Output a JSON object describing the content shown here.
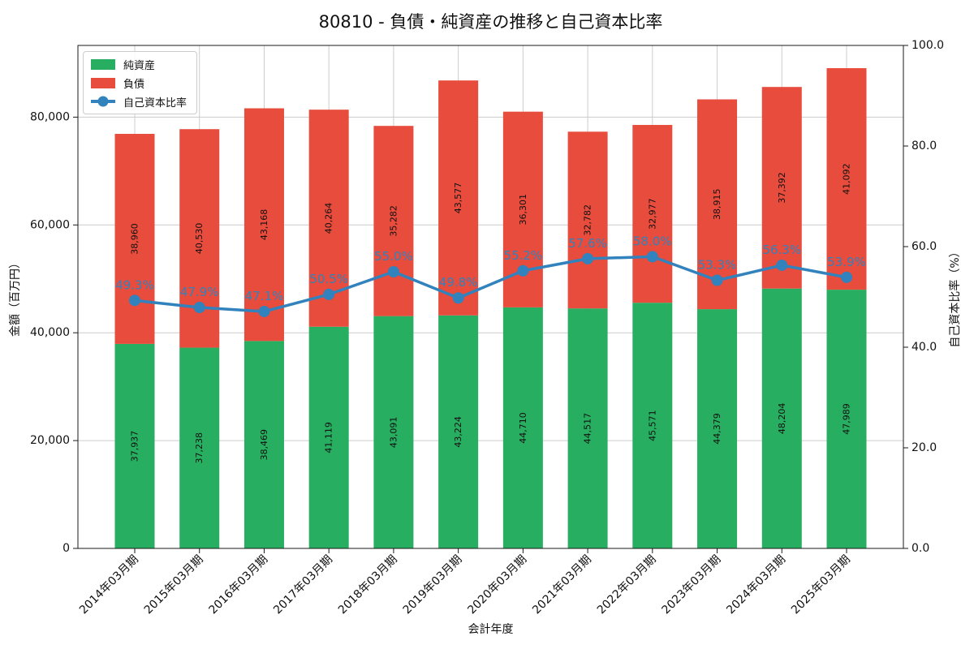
{
  "chart_data": {
    "type": "bar",
    "variant": "stacked-bars-with-line-overlay",
    "title": "80810 - 負債・純資産の推移と自己資本比率",
    "xlabel": "会計年度",
    "ylabel_left": "金額（百万円）",
    "ylabel_right": "自己資本比率（%）",
    "categories": [
      "2014年03月期",
      "2015年03月期",
      "2016年03月期",
      "2017年03月期",
      "2018年03月期",
      "2019年03月期",
      "2020年03月期",
      "2021年03月期",
      "2022年03月期",
      "2023年03月期",
      "2024年03月期",
      "2025年03月期"
    ],
    "series": [
      {
        "name": "純資産",
        "slug": "net-assets",
        "type": "bar",
        "stack_order": 0,
        "color": "#27ae60",
        "values": [
          37937,
          37238,
          38469,
          41119,
          43091,
          43224,
          44710,
          44517,
          45571,
          44379,
          48204,
          47989
        ]
      },
      {
        "name": "負債",
        "slug": "liabilities",
        "type": "bar",
        "stack_order": 1,
        "color": "#e74c3c",
        "values": [
          38960,
          40530,
          43168,
          40264,
          35282,
          43577,
          36301,
          32782,
          32977,
          38915,
          37392,
          41092
        ]
      },
      {
        "name": "自己資本比率",
        "slug": "equity-ratio",
        "type": "line",
        "axis": "right",
        "color": "#3182bd",
        "values": [
          49.3,
          47.9,
          47.1,
          50.5,
          55.0,
          49.8,
          55.2,
          57.6,
          58.0,
          53.3,
          56.3,
          53.9
        ],
        "label_suffix": "%"
      }
    ],
    "axes": {
      "left": {
        "ticks": [
          0,
          20000,
          40000,
          60000,
          80000
        ],
        "min": 0,
        "max": 93300,
        "tick_labels": [
          "0",
          "20,000",
          "40,000",
          "60,000",
          "80,000"
        ]
      },
      "right": {
        "ticks": [
          0,
          20,
          40,
          60,
          80,
          100
        ],
        "min": 0,
        "max": 100,
        "tick_labels": [
          "0.0",
          "20.0",
          "40.0",
          "60.0",
          "80.0",
          "100.0"
        ]
      }
    },
    "legend": {
      "position": "upper-left",
      "entries": [
        "純資産",
        "負債",
        "自己資本比率"
      ],
      "border_color": "#cccccc"
    },
    "grid": true,
    "grid_color": "#cccccc",
    "frame_color": "#1a1a1a",
    "bar_label_color": "#111111",
    "x_tick_rotation_deg": 45
  }
}
